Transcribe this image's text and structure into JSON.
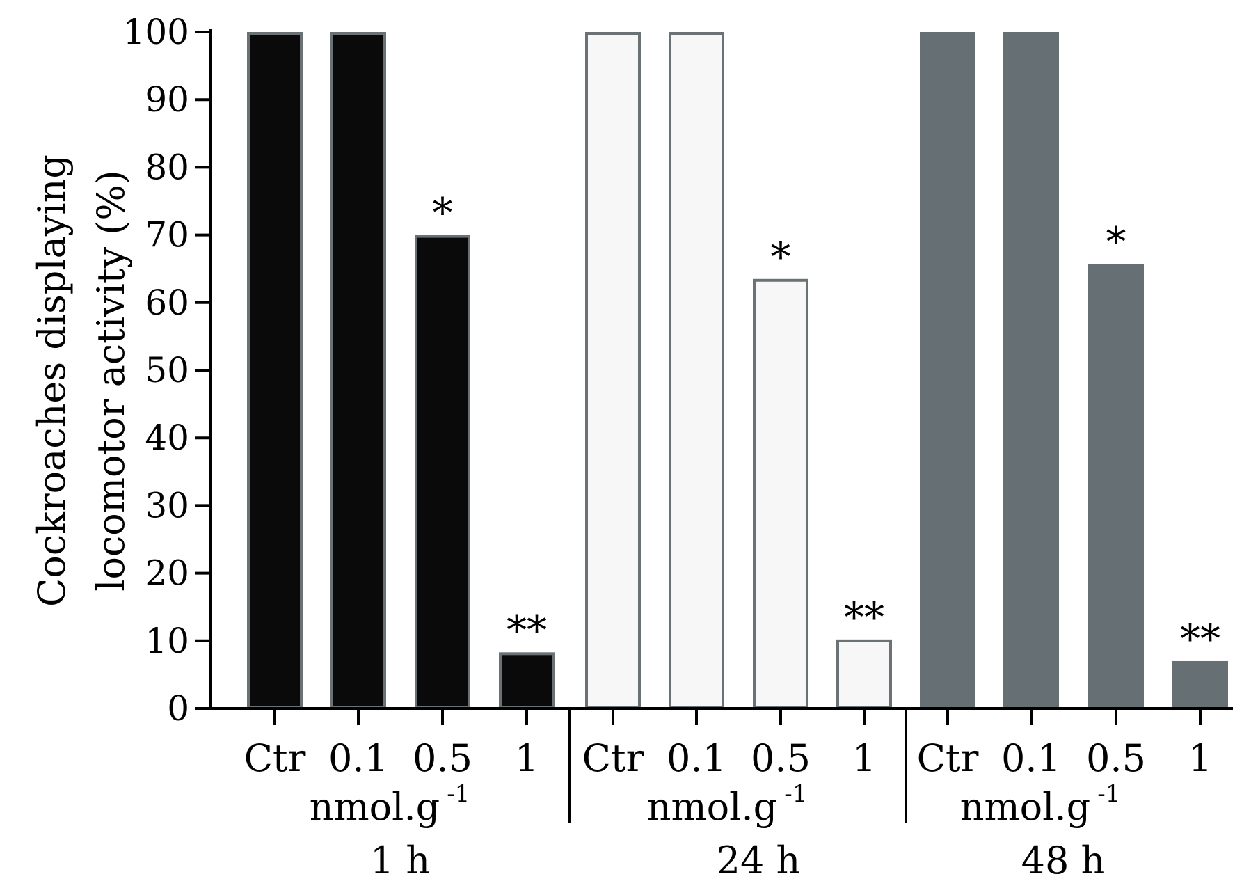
{
  "chart_data": {
    "type": "bar",
    "ylabel_lines": [
      "Cockroaches displaying",
      "locomotor activity (%)"
    ],
    "ylim": [
      0,
      100
    ],
    "yticks": [
      0,
      10,
      20,
      30,
      40,
      50,
      60,
      70,
      80,
      90,
      100
    ],
    "grid": false,
    "legend": "none",
    "unit_label": "nmol.g",
    "unit_superscript": "-1",
    "groups": [
      {
        "label": "1 h",
        "fill": "#0a0a0a",
        "stroke": "#6a7275",
        "bars": [
          {
            "category": "Ctr",
            "value": 100,
            "annotation": ""
          },
          {
            "category": "0.1",
            "value": 100,
            "annotation": ""
          },
          {
            "category": "0.5",
            "value": 70,
            "annotation": "*"
          },
          {
            "category": "1",
            "value": 8.3,
            "annotation": "**"
          }
        ]
      },
      {
        "label": "24 h",
        "fill": "#f8f7f7",
        "stroke": "#6a7275",
        "bars": [
          {
            "category": "Ctr",
            "value": 100,
            "annotation": ""
          },
          {
            "category": "0.1",
            "value": 100,
            "annotation": ""
          },
          {
            "category": "0.5",
            "value": 63.5,
            "annotation": "*"
          },
          {
            "category": "1",
            "value": 10.2,
            "annotation": "**"
          }
        ]
      },
      {
        "label": "48 h",
        "fill": "#666f73",
        "stroke": "#666f73",
        "bars": [
          {
            "category": "Ctr",
            "value": 100,
            "annotation": ""
          },
          {
            "category": "0.1",
            "value": 100,
            "annotation": ""
          },
          {
            "category": "0.5",
            "value": 65.7,
            "annotation": "*"
          },
          {
            "category": "1",
            "value": 7,
            "annotation": "**"
          }
        ]
      }
    ],
    "colors": {
      "axis": "#000000",
      "text": "#000000"
    }
  }
}
